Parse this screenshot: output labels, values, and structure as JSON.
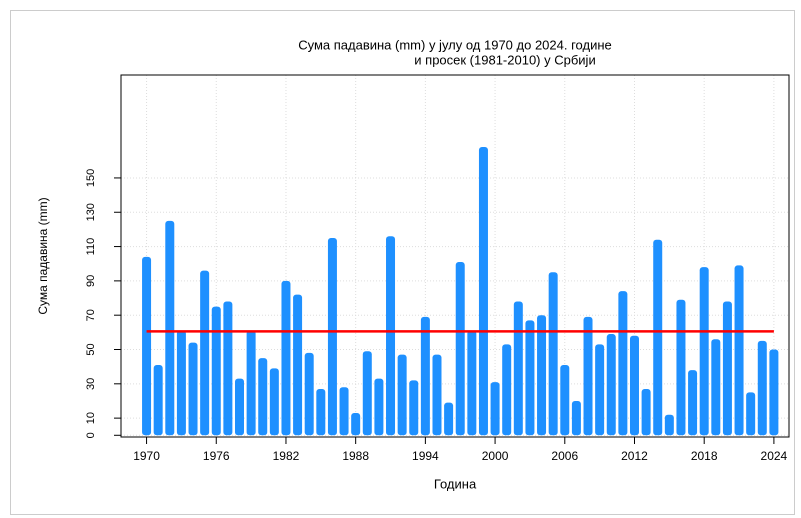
{
  "chart_data": {
    "type": "bar",
    "title": [
      "Сума падавина (mm)  у јулу од 1970 до 2024. године",
      "и просек (1981-2010) у Србији"
    ],
    "xlabel": "Година",
    "ylabel": "Сума падавина (mm)",
    "x": [
      1970,
      1971,
      1972,
      1973,
      1974,
      1975,
      1976,
      1977,
      1978,
      1979,
      1980,
      1981,
      1982,
      1983,
      1984,
      1985,
      1986,
      1987,
      1988,
      1989,
      1990,
      1991,
      1992,
      1993,
      1994,
      1995,
      1996,
      1997,
      1998,
      1999,
      2000,
      2001,
      2002,
      2003,
      2004,
      2005,
      2006,
      2007,
      2008,
      2009,
      2010,
      2011,
      2012,
      2013,
      2014,
      2015,
      2016,
      2017,
      2018,
      2019,
      2020,
      2021,
      2022,
      2023,
      2024
    ],
    "values": [
      104,
      41,
      125,
      61,
      54,
      96,
      75,
      78,
      33,
      61,
      45,
      39,
      90,
      82,
      48,
      27,
      115,
      28,
      13,
      49,
      33,
      116,
      47,
      32,
      69,
      47,
      19,
      101,
      61,
      168,
      31,
      53,
      78,
      67,
      70,
      95,
      41,
      20,
      69,
      53,
      59,
      84,
      58,
      27,
      114,
      12,
      79,
      38,
      98,
      56,
      78,
      99,
      25,
      55,
      50
    ],
    "color": "#1e90ff",
    "average": {
      "value": 60.6,
      "color": "#ff0000"
    },
    "xlim": [
      1967.8,
      2025.3
    ],
    "xticks": [
      1970,
      1976,
      1982,
      1988,
      1994,
      2000,
      2006,
      2012,
      2018,
      2024
    ],
    "ylim": [
      -1,
      210
    ],
    "yticks": [
      0,
      10,
      30,
      50,
      70,
      90,
      110,
      130,
      150
    ],
    "grid": true
  }
}
